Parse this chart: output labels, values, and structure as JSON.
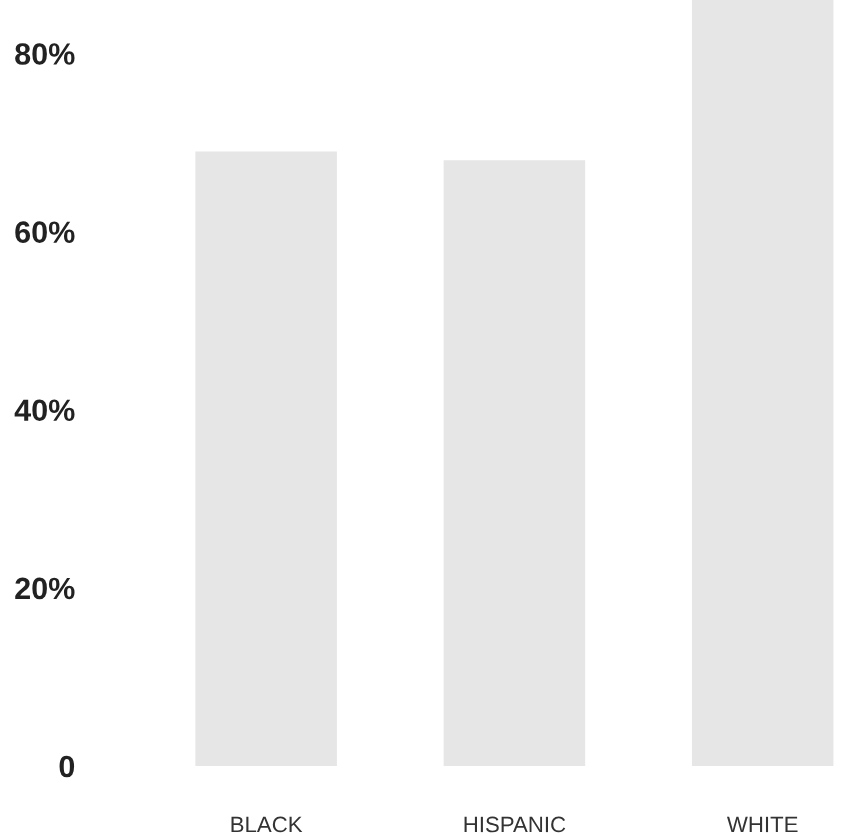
{
  "chart_data": {
    "type": "bar",
    "categories": [
      "BLACK",
      "HISPANIC",
      "WHITE"
    ],
    "values": [
      69,
      68,
      86
    ],
    "color": "#e6e6e6",
    "ylim": [
      0,
      86
    ],
    "yticks": [
      0,
      {
        "value": 20,
        "label": "20%"
      },
      {
        "value": 40,
        "label": "40%"
      },
      {
        "value": 60,
        "label": "60%"
      },
      {
        "value": 80,
        "label": "80%"
      }
    ],
    "grid": false
  }
}
